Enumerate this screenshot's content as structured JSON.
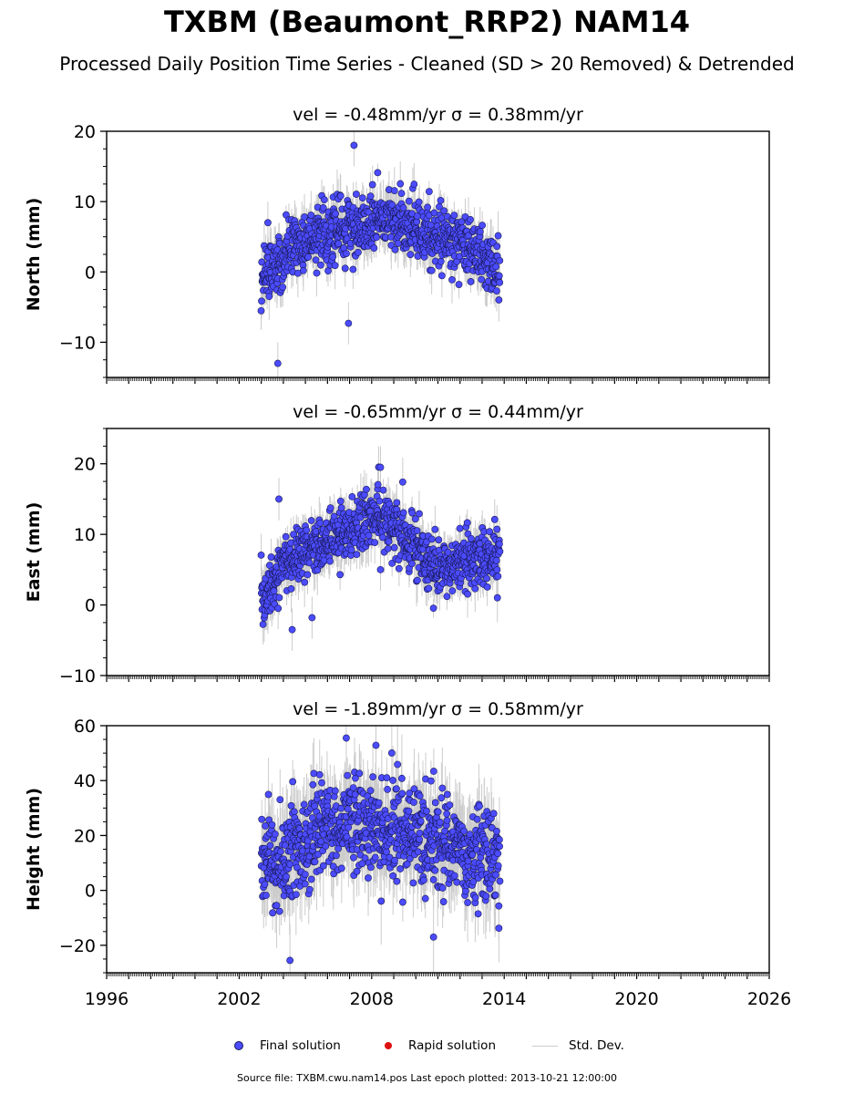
{
  "figure": {
    "title": "TXBM (Beaumont_RRP2) NAM14",
    "subtitle": "Processed Daily Position Time Series - Cleaned (SD > 20 Removed) & Detrended",
    "footer": "Source file: TXBM.cwu.nam14.pos  Last epoch plotted: 2013-10-21 12:00:00"
  },
  "legend": {
    "final": "Final solution",
    "rapid": "Rapid solution",
    "stddev": "Std. Dev."
  },
  "colors": {
    "final": "#4b4bff",
    "final_edge": "#1a1a55",
    "rapid": "#dd1111",
    "stddev": "#cccccc"
  },
  "chart_data": [
    {
      "type": "scatter",
      "title": "vel = -0.48mm/yr   σ = 0.38mm/yr",
      "ylabel": "North (mm)",
      "xlim": [
        1996,
        2026
      ],
      "ylim": [
        -15,
        20
      ],
      "yticks": [
        -10,
        0,
        10,
        20
      ],
      "xticks": [
        1996,
        2002,
        2008,
        2014,
        2020,
        2026
      ],
      "data_span": [
        2003.0,
        2013.8
      ],
      "series": [
        {
          "envelope": [
            [
              2003.0,
              0
            ],
            [
              2004.0,
              2
            ],
            [
              2005.0,
              4.5
            ],
            [
              2006.0,
              5.5
            ],
            [
              2007.0,
              6.5
            ],
            [
              2008.0,
              7
            ],
            [
              2009.0,
              7.5
            ],
            [
              2010.0,
              6
            ],
            [
              2011.0,
              5
            ],
            [
              2012.0,
              4
            ],
            [
              2013.0,
              2.5
            ],
            [
              2013.8,
              0
            ]
          ],
          "scatter_sd": 2.0,
          "outliers": [
            [
              2003.75,
              -13
            ],
            [
              2006.95,
              -7.3
            ],
            [
              2007.2,
              18
            ],
            [
              2003.3,
              7
            ]
          ]
        }
      ]
    },
    {
      "type": "scatter",
      "title": "vel = -0.65mm/yr   σ = 0.44mm/yr",
      "ylabel": "East (mm)",
      "xlim": [
        1996,
        2026
      ],
      "ylim": [
        -10,
        25
      ],
      "yticks": [
        -10,
        0,
        10,
        20
      ],
      "xticks": [
        1996,
        2002,
        2008,
        2014,
        2020,
        2026
      ],
      "data_span": [
        2003.0,
        2013.8
      ],
      "series": [
        {
          "envelope": [
            [
              2003.0,
              0
            ],
            [
              2004.0,
              6
            ],
            [
              2005.0,
              8
            ],
            [
              2006.0,
              9
            ],
            [
              2007.0,
              10.5
            ],
            [
              2008.0,
              12
            ],
            [
              2009.0,
              11
            ],
            [
              2010.0,
              8
            ],
            [
              2011.0,
              5
            ],
            [
              2012.0,
              6
            ],
            [
              2013.0,
              6.5
            ],
            [
              2013.8,
              7
            ]
          ],
          "scatter_sd": 2.0,
          "outliers": [
            [
              2003.8,
              15
            ],
            [
              2004.4,
              -3.5
            ],
            [
              2005.3,
              -1.8
            ],
            [
              2008.4,
              19.5
            ],
            [
              2008.4,
              5
            ]
          ]
        }
      ]
    },
    {
      "type": "scatter",
      "title": "vel = -1.89mm/yr   σ = 0.58mm/yr",
      "ylabel": "Height (mm)",
      "xlim": [
        1996,
        2026
      ],
      "ylim": [
        -30,
        60
      ],
      "yticks": [
        -20,
        0,
        20,
        40,
        60
      ],
      "xticks": [
        1996,
        2002,
        2008,
        2014,
        2020,
        2026
      ],
      "data_span": [
        2003.0,
        2013.8
      ],
      "series": [
        {
          "envelope": [
            [
              2003.0,
              8
            ],
            [
              2004.0,
              12
            ],
            [
              2005.0,
              18
            ],
            [
              2006.0,
              22
            ],
            [
              2007.0,
              25
            ],
            [
              2008.0,
              24
            ],
            [
              2009.0,
              22
            ],
            [
              2010.0,
              20
            ],
            [
              2011.0,
              17
            ],
            [
              2012.0,
              15
            ],
            [
              2013.0,
              13
            ],
            [
              2013.8,
              12
            ]
          ],
          "scatter_sd": 9.0,
          "outliers": [
            [
              2004.3,
              -25.5
            ],
            [
              2006.85,
              55.5
            ],
            [
              2010.8,
              -17
            ]
          ]
        }
      ]
    }
  ]
}
